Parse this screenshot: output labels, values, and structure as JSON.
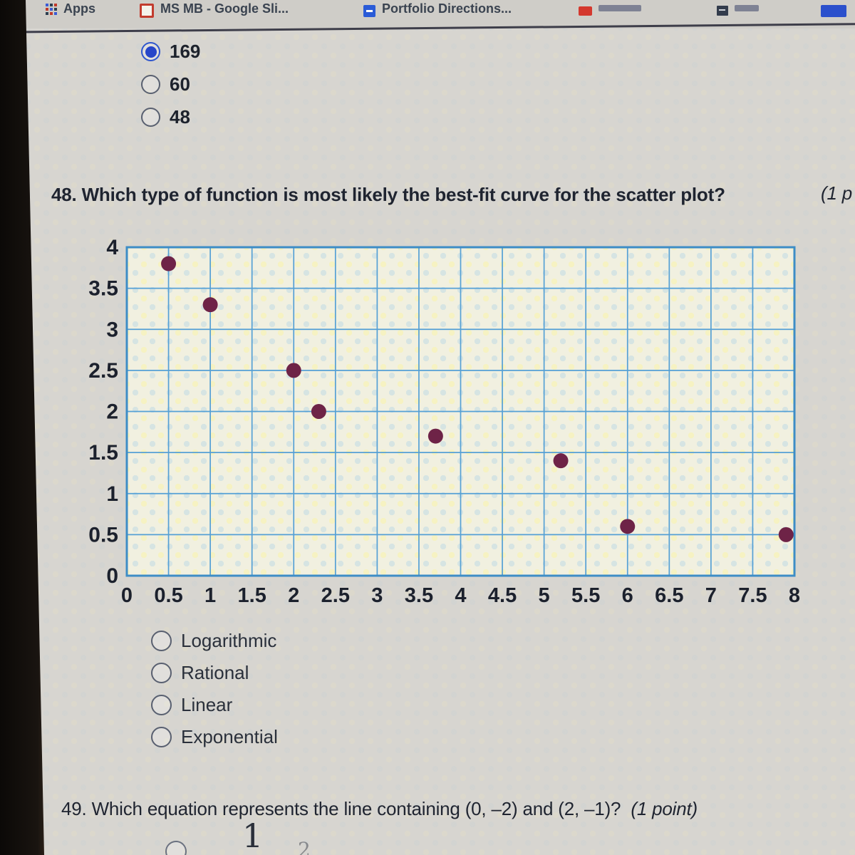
{
  "colors": {
    "bezel": "#17120e",
    "bar_bg": "#cfcdc8",
    "page_bg": "#d7d5d0",
    "accent_radio": "#2746c9",
    "text": "#1c212d"
  },
  "bookmarks_bar": {
    "items": [
      {
        "label": "Apps"
      },
      {
        "label": "MS MB - Google Sli..."
      },
      {
        "label": "Portfolio Directions..."
      },
      {
        "label": ""
      },
      {
        "label": ""
      },
      {
        "label": ""
      }
    ]
  },
  "previous_question": {
    "options": [
      {
        "label": "169",
        "selected": true
      },
      {
        "label": "60",
        "selected": false
      },
      {
        "label": "48",
        "selected": false
      }
    ]
  },
  "question48": {
    "number": "48.",
    "text": "Which type of function is most likely the best-fit curve for the scatter plot?",
    "points_label": "(1 p",
    "options": [
      {
        "label": "Logarithmic",
        "selected": false
      },
      {
        "label": "Rational",
        "selected": false
      },
      {
        "label": "Linear",
        "selected": false
      },
      {
        "label": "Exponential",
        "selected": false
      }
    ]
  },
  "chart_data": {
    "type": "scatter",
    "title": "",
    "xlabel": "",
    "ylabel": "",
    "xlim": [
      0,
      8
    ],
    "ylim": [
      0,
      4
    ],
    "x_ticks": [
      "0",
      "0.5",
      "1",
      "1.5",
      "2",
      "2.5",
      "3",
      "3.5",
      "4",
      "4.5",
      "5",
      "5.5",
      "6",
      "6.5",
      "7",
      "7.5",
      "8"
    ],
    "y_ticks": [
      "4",
      "3.5",
      "3",
      "2.5",
      "2",
      "1.5",
      "1",
      "0.5",
      "0"
    ],
    "grid": true,
    "legend": false,
    "points": [
      [
        0.5,
        3.8
      ],
      [
        1.0,
        3.3
      ],
      [
        2.0,
        2.5
      ],
      [
        2.3,
        2.0
      ],
      [
        3.7,
        1.7
      ],
      [
        5.2,
        1.4
      ],
      [
        6.0,
        0.6
      ],
      [
        7.9,
        0.5
      ]
    ],
    "point_color": "#6e2347",
    "grid_color": "#55a0d5",
    "border_color": "#3d8dc6",
    "tick_color": "#1c212d"
  },
  "question49": {
    "number": "49.",
    "text": "Which equation represents the line containing (0, –2) and (2, –1)?",
    "points_label": "(1 point)",
    "partial_answer": {
      "numerator": "1",
      "faint_char": "2"
    }
  }
}
